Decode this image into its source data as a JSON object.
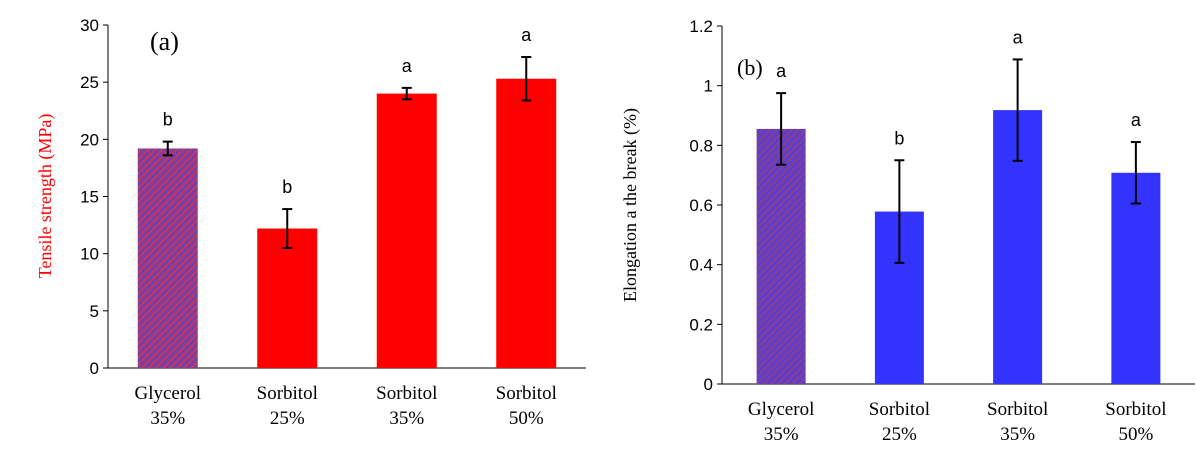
{
  "chart_data": [
    {
      "type": "bar",
      "panel_label": "(a)",
      "categories": [
        [
          "Glycerol",
          "35%"
        ],
        [
          "Sorbitol",
          "25%"
        ],
        [
          "Sorbitol",
          "35%"
        ],
        [
          "Sorbitol",
          "50%"
        ]
      ],
      "values": [
        19.2,
        12.2,
        24.0,
        25.3
      ],
      "errors": [
        0.6,
        1.7,
        0.5,
        1.9
      ],
      "significance": [
        "b",
        "b",
        "a",
        "a"
      ],
      "ylabel": "Tensile strength (MPa)",
      "ylim": [
        0,
        30
      ],
      "yticks": [
        0,
        5,
        10,
        15,
        20,
        25,
        30
      ],
      "ytick_labels": [
        "0",
        "5",
        "10",
        "15",
        "20",
        "25",
        "30"
      ],
      "grid": false,
      "colors": {
        "bar": "#ff0000",
        "hatched_bar": "#7a3fa0",
        "hatch_line": "#ff2d2d",
        "ylabel": "#ff0000"
      },
      "hatched": [
        true,
        false,
        false,
        false
      ]
    },
    {
      "type": "bar",
      "panel_label": "(b)",
      "categories": [
        [
          "Glycerol",
          "35%"
        ],
        [
          "Sorbitol",
          "25%"
        ],
        [
          "Sorbitol",
          "35%"
        ],
        [
          "Sorbitol",
          "50%"
        ]
      ],
      "values": [
        0.855,
        0.578,
        0.918,
        0.708
      ],
      "errors": [
        0.12,
        0.172,
        0.17,
        0.103
      ],
      "significance": [
        "a",
        "b",
        "a",
        "a"
      ],
      "ylabel": "Elongation a the break (%)",
      "ylim": [
        0,
        1.2
      ],
      "yticks": [
        0,
        0.2,
        0.4,
        0.6,
        0.8,
        1.0,
        1.2
      ],
      "ytick_labels": [
        "0",
        "0.2",
        "0.4",
        "0.6",
        "0.8",
        "1",
        "1.2"
      ],
      "grid": false,
      "colors": {
        "bar": "#3333ff",
        "hatched_bar": "#7a3fa0",
        "hatch_line": "#3b3bff",
        "ylabel": "#000000"
      },
      "hatched": [
        true,
        false,
        false,
        false
      ]
    }
  ]
}
